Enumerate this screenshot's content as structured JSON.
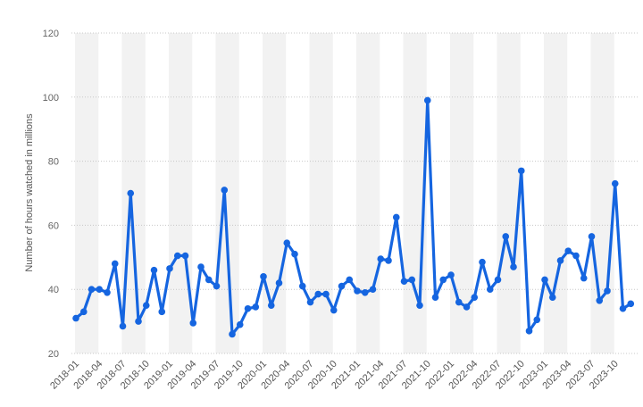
{
  "chart_data": {
    "type": "line",
    "title": "",
    "xlabel": "",
    "ylabel": "Number of hours watched in millions",
    "ylim": [
      20,
      120
    ],
    "yticks": [
      20,
      40,
      60,
      80,
      100,
      120
    ],
    "grid": true,
    "line_color": "#1565e0",
    "band_color": "#f2f2f2",
    "x_tick_labels": [
      "2018-01",
      "2018-04",
      "2018-07",
      "2018-10",
      "2019-01",
      "2019-04",
      "2019-07",
      "2019-10",
      "2020-01",
      "2020-04",
      "2020-07",
      "2020-10",
      "2021-01",
      "2021-04",
      "2021-07",
      "2021-10",
      "2022-01",
      "2022-04",
      "2022-07",
      "2022-10",
      "2023-01",
      "2023-04",
      "2023-07",
      "2023-10"
    ],
    "x": [
      "2018-01",
      "2018-02",
      "2018-03",
      "2018-04",
      "2018-05",
      "2018-06",
      "2018-07",
      "2018-08",
      "2018-09",
      "2018-10",
      "2018-11",
      "2018-12",
      "2019-01",
      "2019-02",
      "2019-03",
      "2019-04",
      "2019-05",
      "2019-06",
      "2019-07",
      "2019-08",
      "2019-09",
      "2019-10",
      "2019-11",
      "2019-12",
      "2020-01",
      "2020-02",
      "2020-03",
      "2020-04",
      "2020-05",
      "2020-06",
      "2020-07",
      "2020-08",
      "2020-09",
      "2020-10",
      "2020-11",
      "2020-12",
      "2021-01",
      "2021-02",
      "2021-03",
      "2021-04",
      "2021-05",
      "2021-06",
      "2021-07",
      "2021-08",
      "2021-09",
      "2021-10",
      "2021-11",
      "2021-12",
      "2022-01",
      "2022-02",
      "2022-03",
      "2022-04",
      "2022-05",
      "2022-06",
      "2022-07",
      "2022-08",
      "2022-09",
      "2022-10",
      "2022-11",
      "2022-12",
      "2023-01",
      "2023-02",
      "2023-03",
      "2023-04",
      "2023-05",
      "2023-06",
      "2023-07",
      "2023-08",
      "2023-09",
      "2023-10",
      "2023-11",
      "2023-12"
    ],
    "series": [
      {
        "values": [
          31,
          33,
          40,
          40,
          39,
          48,
          28.5,
          70,
          30,
          35,
          46,
          33,
          46.5,
          50.5,
          50.5,
          29.5,
          47,
          43,
          41,
          71,
          26,
          29,
          34,
          34.5,
          44,
          35,
          42,
          54.5,
          51,
          41,
          36,
          38.5,
          38.5,
          33.5,
          41,
          43,
          39.5,
          39,
          40,
          49.5,
          49,
          62.5,
          42.5,
          43,
          35,
          99,
          37.5,
          43,
          44.5,
          36,
          34.5,
          37.5,
          48.5,
          40,
          43,
          56.5,
          47,
          77,
          27,
          30.5,
          43,
          37.5,
          49,
          52,
          50.5,
          43.5,
          56.5,
          36.5,
          39.5,
          73,
          34,
          35.5
        ]
      }
    ]
  }
}
